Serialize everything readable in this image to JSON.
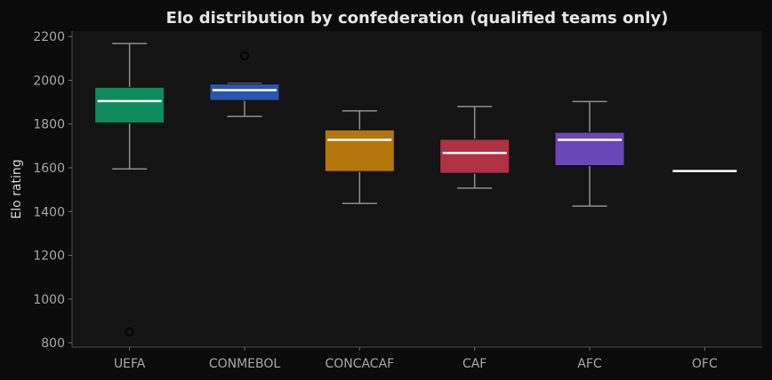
{
  "chart_data": {
    "type": "box",
    "title": "Elo distribution by confederation (qualified teams only)",
    "xlabel": "",
    "ylabel": "Elo rating",
    "ylim": [
      780,
      2225
    ],
    "yticks": [
      800,
      1000,
      1200,
      1400,
      1600,
      1800,
      2000,
      2200
    ],
    "grid": false,
    "categories": [
      "UEFA",
      "CONMEBOL",
      "CONCACAF",
      "CAF",
      "AFC",
      "OFC"
    ],
    "colors": [
      "#0f8a5f",
      "#2957b0",
      "#b5760c",
      "#b03044",
      "#6a46b8",
      "#ffffff"
    ],
    "boxes": [
      {
        "name": "UEFA",
        "whisker_low": 1595,
        "q1": 1805,
        "median": 1905,
        "q3": 1968,
        "whisker_high": 2168,
        "outliers": [
          850
        ]
      },
      {
        "name": "CONMEBOL",
        "whisker_low": 1835,
        "q1": 1908,
        "median": 1955,
        "q3": 1983,
        "whisker_high": 1985,
        "outliers": [
          2112
        ]
      },
      {
        "name": "CONCACAF",
        "whisker_low": 1437,
        "q1": 1583,
        "median": 1728,
        "q3": 1773,
        "whisker_high": 1860,
        "outliers": []
      },
      {
        "name": "CAF",
        "whisker_low": 1507,
        "q1": 1575,
        "median": 1668,
        "q3": 1730,
        "whisker_high": 1880,
        "outliers": []
      },
      {
        "name": "AFC",
        "whisker_low": 1425,
        "q1": 1610,
        "median": 1728,
        "q3": 1762,
        "whisker_high": 1903,
        "outliers": []
      },
      {
        "name": "OFC",
        "whisker_low": 1585,
        "q1": 1585,
        "median": 1585,
        "q3": 1585,
        "whisker_high": 1585,
        "outliers": []
      }
    ]
  }
}
